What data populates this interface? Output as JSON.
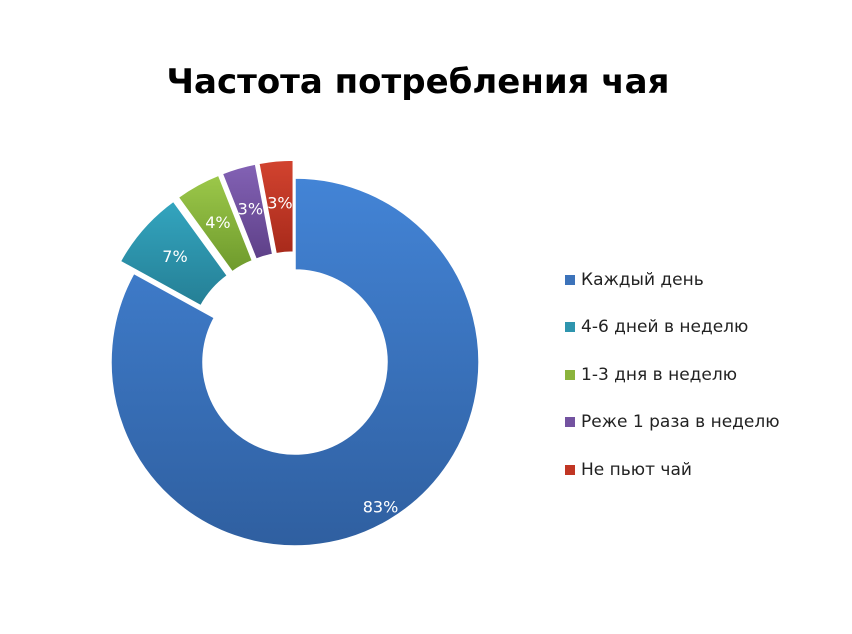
{
  "chart_data": {
    "type": "pie",
    "title": "Частота потребления чая",
    "categories": [
      "Каждый день",
      "4-6 дней в неделю",
      "1-3 дня в неделю",
      "Реже 1 раза в неделю",
      "Не пьют чай"
    ],
    "values": [
      83,
      7,
      4,
      3,
      3
    ],
    "data_labels": [
      "83%",
      "7%",
      "4%",
      "3%",
      "3%"
    ],
    "colors": [
      "#3C73BA",
      "#2E95AE",
      "#8BB43C",
      "#7352A0",
      "#C13624"
    ],
    "donut": true,
    "exploded": [
      false,
      true,
      true,
      true,
      true
    ],
    "legend_position": "right"
  }
}
